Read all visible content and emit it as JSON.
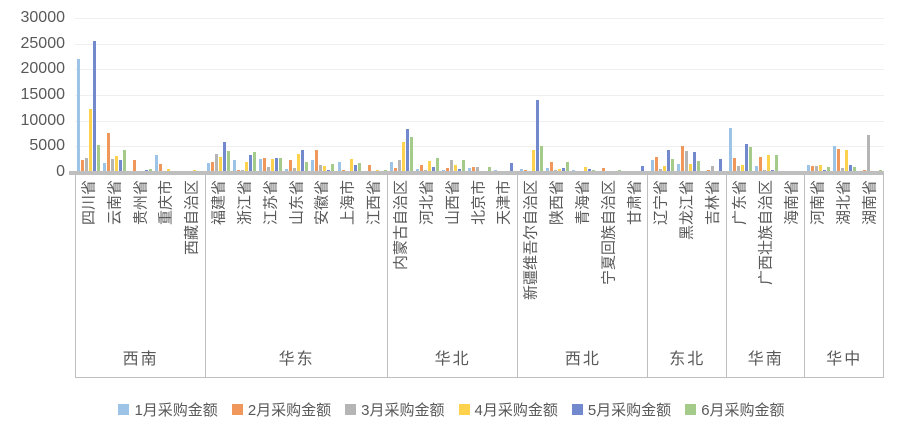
{
  "chart_data": {
    "type": "bar",
    "title": "",
    "xlabel": "",
    "ylabel": "",
    "grid": true,
    "legend_position": "bottom",
    "y_axis": {
      "min": 0,
      "max": 30000,
      "step": 5000,
      "ticks": [
        "0",
        "5000",
        "10000",
        "15000",
        "20000",
        "25000",
        "30000"
      ]
    },
    "series": [
      {
        "name": "1月采购金额",
        "color": "#9DC3E6"
      },
      {
        "name": "2月采购金额",
        "color": "#F0985B"
      },
      {
        "name": "3月采购金额",
        "color": "#B5B5B5"
      },
      {
        "name": "4月采购金额",
        "color": "#FFD24D"
      },
      {
        "name": "5月采购金额",
        "color": "#7289CE"
      },
      {
        "name": "6月采购金额",
        "color": "#A5CB8B"
      }
    ],
    "regions": [
      {
        "name": "西南",
        "provinces": [
          {
            "name": "四川省",
            "values": [
              22000,
              2300,
              2800,
              12300,
              25500,
              5200
            ]
          },
          {
            "name": "云南省",
            "values": [
              1700,
              7500,
              2600,
              3100,
              2300,
              4200
            ]
          },
          {
            "name": "贵州省",
            "values": [
              200,
              2300,
              200,
              100,
              400,
              600
            ]
          },
          {
            "name": "重庆市",
            "values": [
              3300,
              1500,
              100,
              600,
              100,
              100
            ]
          },
          {
            "name": "西藏自治区",
            "values": [
              0,
              0,
              0,
              300,
              0,
              100
            ]
          }
        ]
      },
      {
        "name": "华东",
        "provinces": [
          {
            "name": "福建省",
            "values": [
              1700,
              2000,
              3600,
              3000,
              5900,
              4000
            ]
          },
          {
            "name": "浙江省",
            "values": [
              2300,
              400,
              300,
              2000,
              3300,
              3800
            ]
          },
          {
            "name": "江苏省",
            "values": [
              2500,
              2800,
              900,
              2500,
              2700,
              2700
            ]
          },
          {
            "name": "山东省",
            "values": [
              500,
              2300,
              700,
              3600,
              4200,
              2000
            ]
          },
          {
            "name": "安徽省",
            "values": [
              2300,
              4300,
              1300,
              1200,
              400,
              1600
            ]
          },
          {
            "name": "上海市",
            "values": [
              2000,
              300,
              200,
              2500,
              1400,
              1700
            ]
          },
          {
            "name": "江西省",
            "values": [
              100,
              1400,
              100,
              300,
              100,
              300
            ]
          }
        ]
      },
      {
        "name": "华北",
        "provinces": [
          {
            "name": "内蒙古自治区",
            "values": [
              2000,
              800,
              2400,
              5900,
              8300,
              6900
            ]
          },
          {
            "name": "河北省",
            "values": [
              600,
              1400,
              300,
              2100,
              1000,
              2800
            ]
          },
          {
            "name": "山西省",
            "values": [
              300,
              800,
              2300,
              1400,
              600,
              2300
            ]
          },
          {
            "name": "北京市",
            "values": [
              700,
              1000,
              900,
              200,
              100,
              900
            ]
          },
          {
            "name": "天津市",
            "values": [
              400,
              200,
              100,
              100,
              1800,
              100
            ]
          }
        ]
      },
      {
        "name": "西北",
        "provinces": [
          {
            "name": "新疆维吾尔自治区",
            "values": [
              500,
              300,
              200,
              4300,
              14000,
              5100
            ]
          },
          {
            "name": "陕西省",
            "values": [
              800,
              2000,
              300,
              600,
              800,
              2000
            ]
          },
          {
            "name": "青海省",
            "values": [
              400,
              100,
              200,
              1000,
              500,
              400
            ]
          },
          {
            "name": "宁夏回族自治区",
            "values": [
              100,
              700,
              100,
              100,
              0,
              300
            ]
          },
          {
            "name": "甘肃省",
            "values": [
              200,
              100,
              100,
              100,
              1200,
              100
            ]
          }
        ]
      },
      {
        "name": "东北",
        "provinces": [
          {
            "name": "辽宁省",
            "values": [
              2300,
              3000,
              500,
              1200,
              4300,
              2500
            ]
          },
          {
            "name": "黑龙江省",
            "values": [
              1600,
              5100,
              4100,
              1600,
              3900,
              2200
            ]
          },
          {
            "name": "吉林省",
            "values": [
              100,
              300,
              1200,
              200,
              2500,
              200
            ]
          }
        ]
      },
      {
        "name": "华南",
        "provinces": [
          {
            "name": "广东省",
            "values": [
              8600,
              2700,
              1200,
              1400,
              5400,
              4800
            ]
          },
          {
            "name": "广西壮族自治区",
            "values": [
              1200,
              2900,
              300,
              3400,
              400,
              3300
            ]
          },
          {
            "name": "海南省",
            "values": [
              100,
              100,
              0,
              100,
              100,
              100
            ]
          }
        ]
      },
      {
        "name": "华中",
        "provinces": [
          {
            "name": "河南省",
            "values": [
              1300,
              1200,
              1100,
              1400,
              300,
              1000
            ]
          },
          {
            "name": "湖北省",
            "values": [
              5100,
              4400,
              800,
              4200,
              1300,
              1000
            ]
          },
          {
            "name": "湖南省",
            "values": [
              200,
              300,
              7300,
              100,
              200,
              300
            ]
          }
        ]
      }
    ],
    "style_colors": {
      "axis_line": "#bfbfbf",
      "gridline": "#efefef",
      "label_text": "#595959"
    }
  }
}
